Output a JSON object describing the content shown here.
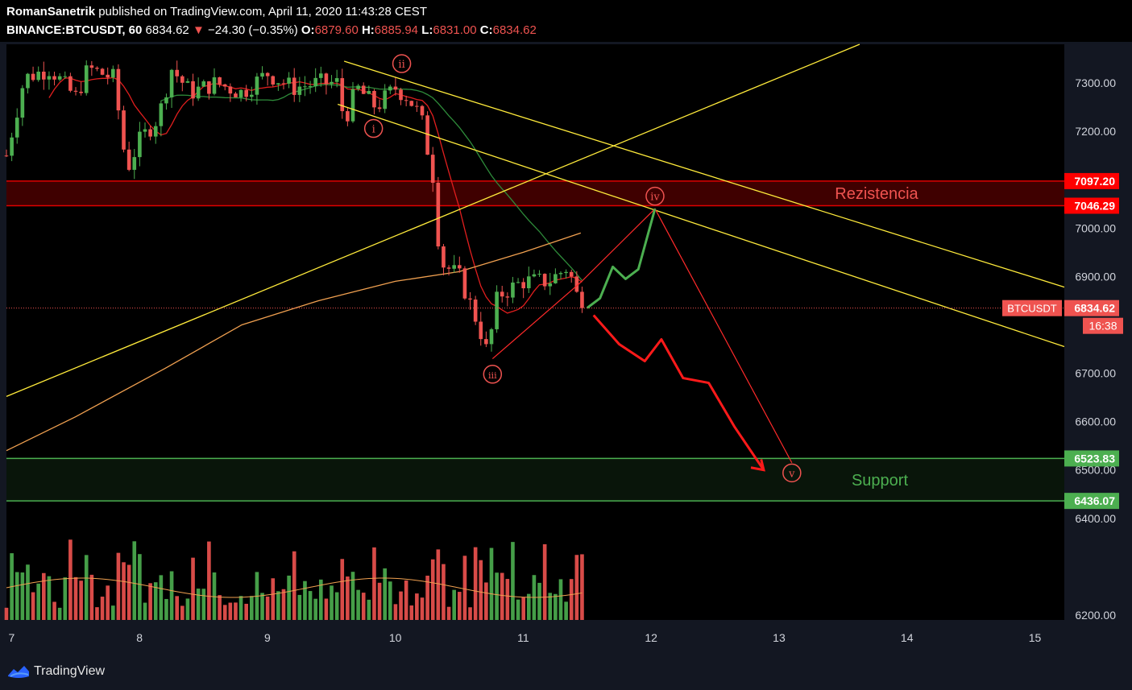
{
  "header": {
    "author": "RomanSanetrik",
    "published": " published on TradingView.com, April 11, 2020 11:43:28 CEST",
    "symbol": "BINANCE:BTCUSDT, 60",
    "price": "6834.62",
    "arrow": "▼",
    "change": "−24.30 (−0.35%)",
    "o_label": "O:",
    "o_val": "6879.60",
    "h_label": "H:",
    "h_val": "6885.94",
    "l_label": "L:",
    "l_val": "6831.00",
    "c_label": "C:",
    "c_val": "6834.62"
  },
  "footer": {
    "brand": "TradingView"
  },
  "colors": {
    "bull": "#4caf50",
    "bear": "#ef5350",
    "trend": "#ffeb3b",
    "resistance": "#8b0000",
    "support": "#4caf50",
    "forecast": "#ff1a1a"
  },
  "chart_data": {
    "type": "candlestick",
    "symbol": "BINANCE:BTCUSDT",
    "interval": "60",
    "ylim": [
      6190,
      7380
    ],
    "xlim": [
      6.96,
      15.23
    ],
    "x_ticks": [
      "7",
      "8",
      "9",
      "10",
      "11",
      "12",
      "13",
      "14",
      "15"
    ],
    "y_ticks": [
      "7300.00",
      "7200.00",
      "7000.00",
      "6900.00",
      "6700.00",
      "6600.00",
      "6500.00",
      "6400.00",
      "6200.00"
    ],
    "price_labels": [
      {
        "text": "7097.20",
        "value": 7097.2,
        "color": "#ff0000"
      },
      {
        "text": "7046.29",
        "value": 7046.29,
        "color": "#ff0000"
      },
      {
        "text": "6834.62",
        "value": 6834.62,
        "color": "#ef5350"
      },
      {
        "text": "6523.83",
        "value": 6523.83,
        "color": "#4caf50"
      },
      {
        "text": "6436.07",
        "value": 6436.07,
        "color": "#4caf50"
      }
    ],
    "symbol_tag": "BTCUSDT",
    "countdown": "16:38",
    "last_price": 6834.62,
    "zones": [
      {
        "label": "Rezistencia",
        "low": 7046.29,
        "high": 7097.2
      },
      {
        "label": "Support",
        "low": 6436.07,
        "high": 6523.83
      }
    ],
    "wave_labels": [
      {
        "label": "i",
        "x": 9.83,
        "y": 7206
      },
      {
        "label": "ii",
        "x": 10.05,
        "y": 7340
      },
      {
        "label": "iii",
        "x": 10.76,
        "y": 6698
      },
      {
        "label": "iv",
        "x": 12.03,
        "y": 7066
      },
      {
        "label": "v",
        "x": 13.1,
        "y": 6494
      }
    ],
    "price_path_key": [
      [
        6.96,
        7150
      ],
      [
        7.1,
        7310
      ],
      [
        7.3,
        7330
      ],
      [
        7.5,
        7270
      ],
      [
        7.6,
        7330
      ],
      [
        7.8,
        7310
      ],
      [
        7.9,
        7120
      ],
      [
        8.0,
        7180
      ],
      [
        8.15,
        7230
      ],
      [
        8.25,
        7330
      ],
      [
        8.4,
        7280
      ],
      [
        8.6,
        7300
      ],
      [
        8.8,
        7280
      ],
      [
        9.0,
        7320
      ],
      [
        9.2,
        7290
      ],
      [
        9.4,
        7300
      ],
      [
        9.55,
        7300
      ],
      [
        9.6,
        7220
      ],
      [
        9.7,
        7290
      ],
      [
        9.85,
        7250
      ],
      [
        10.0,
        7290
      ],
      [
        10.1,
        7270
      ],
      [
        10.2,
        7230
      ],
      [
        10.3,
        7100
      ],
      [
        10.35,
        6930
      ],
      [
        10.5,
        6900
      ],
      [
        10.65,
        6800
      ],
      [
        10.72,
        6740
      ],
      [
        10.8,
        6860
      ],
      [
        11.0,
        6890
      ],
      [
        11.2,
        6890
      ],
      [
        11.35,
        6920
      ],
      [
        11.45,
        6835
      ]
    ]
  }
}
